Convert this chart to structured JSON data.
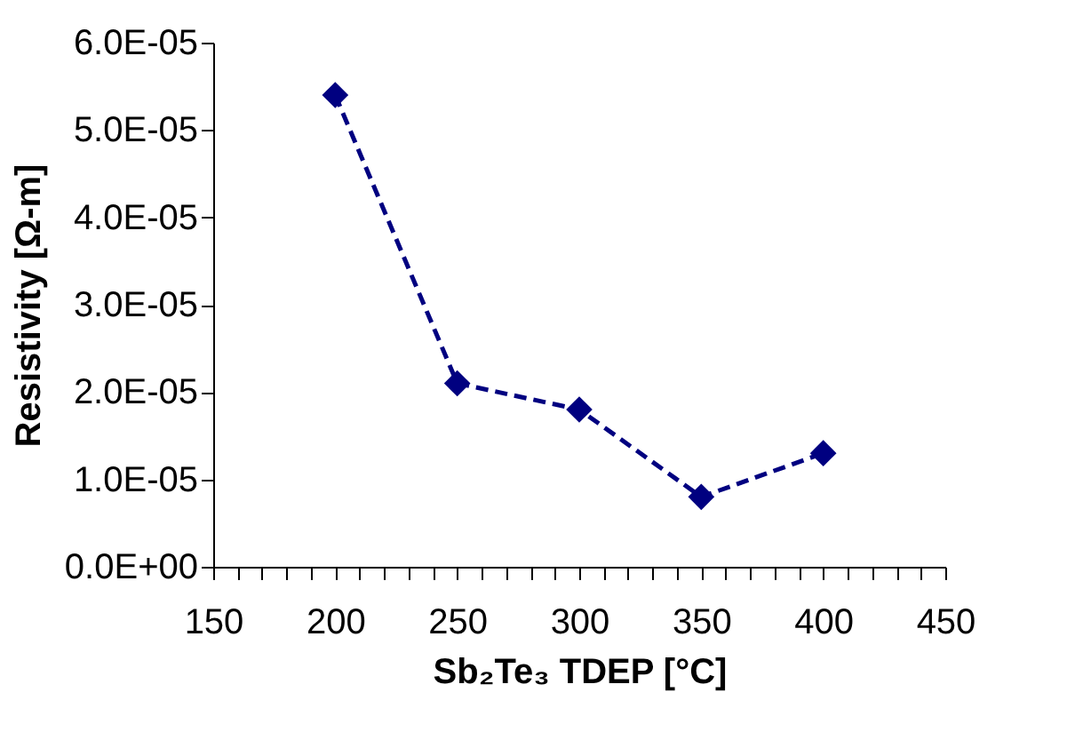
{
  "chart_data": {
    "type": "line",
    "xlabel": "Sb₂Te₃ TDEP [°C]",
    "ylabel": "Resistivity [Ω-m]",
    "x": [
      200,
      250,
      300,
      350,
      400
    ],
    "series": [
      {
        "color": "#000080",
        "values": [
          5.4e-05,
          2.1e-05,
          1.8e-05,
          8e-06,
          1.3e-05
        ]
      }
    ],
    "marker": "diamond",
    "line_style": "dashed",
    "grid": false,
    "xlim": [
      150,
      450
    ],
    "xticks": [
      150,
      {
        "value": 160,
        "label": null
      },
      {
        "value": 170,
        "label": null
      },
      {
        "value": 180,
        "label": null
      },
      {
        "value": 190,
        "label": null
      },
      200,
      {
        "value": 210,
        "label": null
      },
      {
        "value": 220,
        "label": null
      },
      {
        "value": 230,
        "label": null
      },
      {
        "value": 240,
        "label": null
      },
      250,
      {
        "value": 260,
        "label": null
      },
      {
        "value": 270,
        "label": null
      },
      {
        "value": 280,
        "label": null
      },
      {
        "value": 290,
        "label": null
      },
      300,
      {
        "value": 310,
        "label": null
      },
      {
        "value": 320,
        "label": null
      },
      {
        "value": 330,
        "label": null
      },
      {
        "value": 340,
        "label": null
      },
      350,
      {
        "value": 360,
        "label": null
      },
      {
        "value": 370,
        "label": null
      },
      {
        "value": 380,
        "label": null
      },
      {
        "value": 390,
        "label": null
      },
      400,
      {
        "value": 410,
        "label": null
      },
      {
        "value": 420,
        "label": null
      },
      {
        "value": 430,
        "label": null
      },
      {
        "value": 440,
        "label": null
      },
      450
    ],
    "ylim": [
      0,
      6e-05
    ],
    "yticks": [
      {
        "value": 0,
        "label": "0.0E+00"
      },
      {
        "value": 1e-05,
        "label": "1.0E-05"
      },
      {
        "value": 2e-05,
        "label": "2.0E-05"
      },
      {
        "value": 3e-05,
        "label": "3.0E-05"
      },
      {
        "value": 4e-05,
        "label": "4.0E-05"
      },
      {
        "value": 5e-05,
        "label": "5.0E-05"
      },
      {
        "value": 6e-05,
        "label": "6.0E-05"
      }
    ]
  }
}
